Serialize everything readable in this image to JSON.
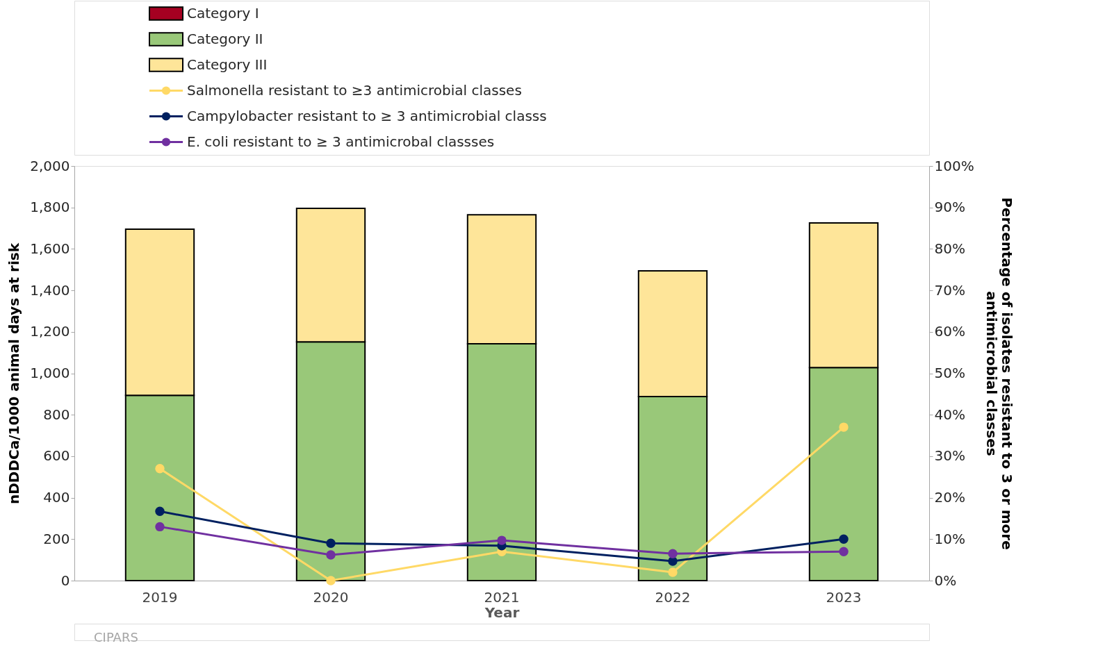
{
  "chart_data": {
    "type": "bar",
    "stacked": true,
    "categories": [
      "2019",
      "2020",
      "2021",
      "2022",
      "2023"
    ],
    "series": [
      {
        "name": "Category I",
        "color": "#a50021",
        "values": [
          0,
          0,
          0,
          0,
          0
        ]
      },
      {
        "name": "Category II",
        "color": "#99c879",
        "values": [
          894,
          1152,
          1142,
          888,
          1028
        ]
      },
      {
        "name": "Category III",
        "color": "#fee599",
        "values": [
          801,
          644,
          623,
          606,
          697
        ]
      },
      {
        "name": "Salmonella resistant to ≥3 antimicrobial classes",
        "type": "line",
        "axis": "y2",
        "color": "#ffd966",
        "values": [
          27,
          0,
          7,
          2,
          37
        ]
      },
      {
        "name": "Campylobacter resistant to ≥ 3 antimicrobial classs",
        "type": "line",
        "axis": "y2",
        "color": "#002060",
        "values": [
          16.7,
          9,
          8.4,
          4.7,
          10
        ]
      },
      {
        "name": "E. coli resistant to ≥ 3 antimicrobal classses",
        "type": "line",
        "axis": "y2",
        "color": "#7030a0",
        "values": [
          13,
          6.2,
          9.7,
          6.5,
          7
        ]
      }
    ],
    "xlabel": "Year",
    "ylabel": "nDDDCa/1000 animal days at risk",
    "y2label": "Percentage of isolates resistant to 3 or more antimicrobial classes",
    "ylim": [
      0,
      2000
    ],
    "yticks": [
      0,
      200,
      400,
      600,
      800,
      {
        "value": 1000,
        "label": "1,000"
      },
      {
        "value": 1200,
        "label": "1,200"
      },
      {
        "value": 1400,
        "label": "1,400"
      },
      {
        "value": 1600,
        "label": "1,600"
      },
      {
        "value": 1800,
        "label": "1,800"
      },
      {
        "value": 2000,
        "label": "2,000"
      }
    ],
    "y2lim": [
      0,
      100
    ],
    "y2ticks": [
      {
        "value": 0,
        "label": "0%"
      },
      {
        "value": 10,
        "label": "10%"
      },
      {
        "value": 20,
        "label": "20%"
      },
      {
        "value": 30,
        "label": "30%"
      },
      {
        "value": 40,
        "label": "40%"
      },
      {
        "value": 50,
        "label": "50%"
      },
      {
        "value": 60,
        "label": "60%"
      },
      {
        "value": 70,
        "label": "70%"
      },
      {
        "value": 80,
        "label": "80%"
      },
      {
        "value": 90,
        "label": "90%"
      },
      {
        "value": 100,
        "label": "100%"
      }
    ],
    "legend": "top left",
    "marker": "circle",
    "grid": false,
    "annotations": [
      "CIPARS"
    ]
  }
}
